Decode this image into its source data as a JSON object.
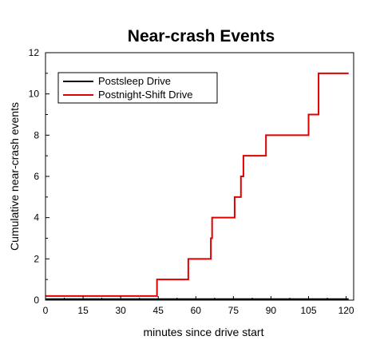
{
  "chart_data": {
    "type": "line",
    "title": "Near-crash Events",
    "xlabel": "minutes since drive start",
    "ylabel": "Cumulative near-crash events",
    "xlim": [
      0,
      123
    ],
    "ylim": [
      0,
      12
    ],
    "xticks": [
      0,
      15,
      30,
      45,
      60,
      75,
      90,
      105,
      120
    ],
    "yticks": [
      0,
      2,
      4,
      6,
      8,
      10,
      12
    ],
    "grid": false,
    "legend_position": "top-left",
    "step": true,
    "series": [
      {
        "name": "Postsleep Drive",
        "color": "#000000",
        "x": [
          0,
          121
        ],
        "y": [
          0.05,
          0.05
        ]
      },
      {
        "name": "Postnight-Shift Drive",
        "color": "#e00000",
        "x": [
          0,
          44.5,
          57,
          66,
          66.5,
          75.5,
          78,
          79,
          88,
          105,
          109,
          121
        ],
        "y": [
          0.2,
          1,
          2,
          3,
          4,
          5,
          6,
          7,
          8,
          9,
          11,
          11
        ]
      }
    ]
  }
}
